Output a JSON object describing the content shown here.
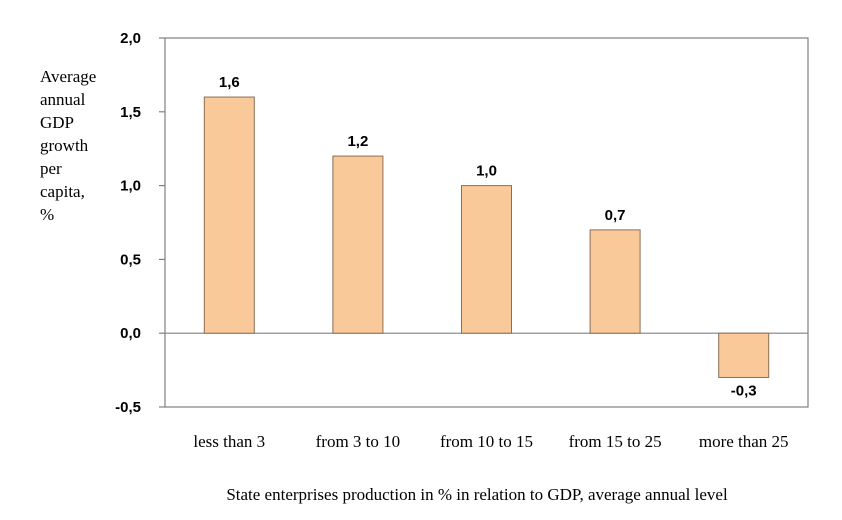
{
  "chart_data": {
    "type": "bar",
    "title": "",
    "ylabel_lines": [
      "Average",
      "annual",
      "GDP",
      "growth",
      "per",
      "capita,",
      "%"
    ],
    "xlabel": "State enterprises production in % in relation to GDP, average annual level",
    "categories": [
      "less than 3",
      "from 3 to 10",
      "from 10 to 15",
      "from 15 to 25",
      "more than 25"
    ],
    "values": [
      1.6,
      1.2,
      1.0,
      0.7,
      -0.3
    ],
    "value_labels": [
      "1,6",
      "1,2",
      "1,0",
      "0,7",
      "-0,3"
    ],
    "ylim": [
      -0.5,
      2.0
    ],
    "yticks": [
      2.0,
      1.5,
      1.0,
      0.5,
      0.0,
      -0.5
    ],
    "ytick_labels": [
      "2,0",
      "1,5",
      "1,0",
      "0,5",
      "0,0",
      "-0,5"
    ],
    "grid": false,
    "legend": "none",
    "colors": {
      "bar_fill": "#FAC99A",
      "bar_stroke": "#8B6F55",
      "axis": "#808080"
    }
  }
}
